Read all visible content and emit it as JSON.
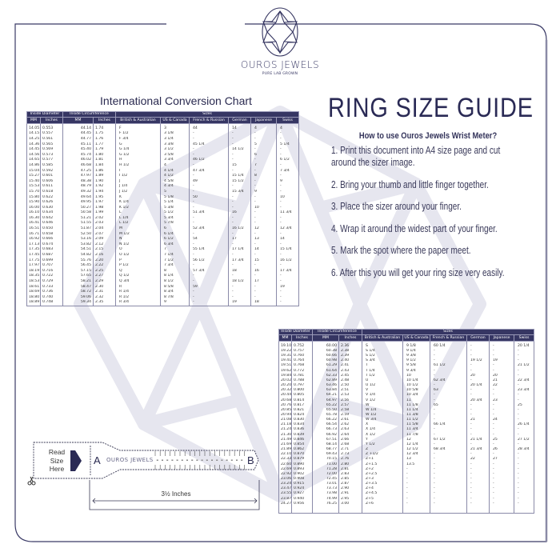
{
  "brand": {
    "name": "OUROS JEWELS",
    "tagline": "PURE LAB GROWN"
  },
  "colors": {
    "navy": "#363663",
    "watermark": "#e6e6ef",
    "frame": "#3a3a66"
  },
  "chart_title": "International Conversion Chart",
  "guide": {
    "title": "RING SIZE GUIDE",
    "howto": "How to use Ouros Jewels Wrist Meter?",
    "steps": [
      "1. Print this document into A4 size page and cut around the sizer image.",
      "2. Bring your thumb and little finger together.",
      "3. Place the sizer around your finger.",
      "4. Wrap it around the widest part of your finger.",
      "5. Mark the spot where the paper meet.",
      "6. After this you will get your ring size very easily."
    ]
  },
  "table_header": {
    "groups": [
      "Inside Diameter",
      "Inside Circumference",
      "Sizes"
    ],
    "columns": [
      "MM",
      "Inches",
      "MM",
      "Inches",
      "British & Australian",
      "US & Canada",
      "French & Russian",
      "German",
      "Japanese",
      "Swiss"
    ]
  },
  "table1_rows": [
    [
      "14.05",
      "0.553",
      "44.14",
      "1.74",
      "F",
      "3",
      "44",
      "14",
      "4",
      "4"
    ],
    [
      "14.15",
      "0.557",
      "44.45",
      "1.75",
      "F 1/2",
      "3 1/8",
      "-",
      "-",
      "-",
      "-"
    ],
    [
      "14.25",
      "0.561",
      "44.77",
      "1.76",
      "F 3/4",
      "3 1/4",
      "-",
      "-",
      "-",
      "-"
    ],
    [
      "14.36",
      "0.565",
      "45.11",
      "1.77",
      "G",
      "3 3/8",
      "45 1/4",
      "-",
      "5",
      "5 1/4"
    ],
    [
      "14.45",
      "0.569",
      "45.40",
      "1.79",
      "G 1/4",
      "3 1/2",
      "-",
      "14 1/2",
      "-",
      "-"
    ],
    [
      "14.56",
      "0.573",
      "45.74",
      "1.80",
      "G 1/2",
      "3 5/8",
      "-",
      "-",
      "6",
      "-"
    ],
    [
      "14.65",
      "0.577",
      "46.02",
      "1.81",
      "H",
      "3 3/4",
      "46 1/2",
      "-",
      "-",
      "6 1/2"
    ],
    [
      "14.86",
      "0.585",
      "46.68",
      "1.84",
      "H 1/2",
      "4",
      "-",
      "15",
      "7",
      "-"
    ],
    [
      "15.04",
      "0.592",
      "47.25",
      "1.86",
      "I",
      "4 1/4",
      "47 3/4",
      "-",
      "-",
      "7 3/4"
    ],
    [
      "15.27",
      "0.601",
      "47.97",
      "1.89",
      "I 1/2",
      "4 1/2",
      "-",
      "15 1/4",
      "8",
      "-"
    ],
    [
      "15.40",
      "0.606",
      "48.38",
      "1.90",
      "J",
      "4 5/8",
      "49",
      "15 1/2",
      "-",
      "9"
    ],
    [
      "15.53",
      "0.611",
      "48.79",
      "1.92",
      "J 1/4",
      "4 3/4",
      "-",
      "-",
      "-",
      "-"
    ],
    [
      "15.70",
      "0.618",
      "49.32",
      "1.94",
      "J 1/2",
      "5",
      "-",
      "15 3/4",
      "9",
      "-"
    ],
    [
      "15.80",
      "0.622",
      "49.64",
      "1.95",
      "K",
      "5 1/8",
      "50",
      "-",
      "-",
      "10"
    ],
    [
      "15.90",
      "0.626",
      "49.95",
      "1.97",
      "K 1/4",
      "5 1/4",
      "-",
      "-",
      "-",
      "-"
    ],
    [
      "16.00",
      "0.630",
      "50.27",
      "1.98",
      "K 1/2",
      "5 3/8",
      "-",
      "-",
      "10",
      "-"
    ],
    [
      "16.10",
      "0.634",
      "50.58",
      "1.99",
      "L",
      "5 1/2",
      "51 3/4",
      "16",
      "-",
      "11 3/4"
    ],
    [
      "16.30",
      "0.642",
      "51.21",
      "2.02",
      "L 1/4",
      "5 3/4",
      "-",
      "-",
      "-",
      "-"
    ],
    [
      "16.41",
      "0.646",
      "51.55",
      "2.03",
      "L 1/2",
      "5 7/8",
      "-",
      "-",
      "-",
      "-"
    ],
    [
      "16.51",
      "0.650",
      "51.87",
      "2.04",
      "M",
      "6",
      "52 3/4",
      "16 1/2",
      "12",
      "12 3/4"
    ],
    [
      "16.71",
      "0.658",
      "52.50",
      "2.07",
      "M 1/2",
      "6 1/4",
      "-",
      "-",
      "-",
      "-"
    ],
    [
      "16.92",
      "0.666",
      "53.16",
      "2.09",
      "N",
      "6 1/2",
      "54",
      "17",
      "13",
      "14"
    ],
    [
      "17.13",
      "0.674",
      "53.82",
      "2.12",
      "N 1/2",
      "6 3/4",
      "-",
      "-",
      "-",
      "-"
    ],
    [
      "17.35",
      "0.683",
      "54.51",
      "2.15",
      "O",
      "7",
      "55 1/4",
      "17 1/4",
      "14",
      "15 1/4"
    ],
    [
      "17.45",
      "0.687",
      "54.82",
      "2.16",
      "O 1/2",
      "7 1/4",
      "-",
      "-",
      "-",
      "-"
    ],
    [
      "17.75",
      "0.699",
      "55.76",
      "2.20",
      "P",
      "7 1/2",
      "56 1/2",
      "17 3/4",
      "15",
      "16 1/2"
    ],
    [
      "17.97",
      "0.707",
      "56.45",
      "2.22",
      "P 1/2",
      "7 3/4",
      "-",
      "-",
      "-",
      "-"
    ],
    [
      "18.19",
      "0.716",
      "57.15",
      "2.25",
      "Q",
      "8",
      "57 3/4",
      "18",
      "16",
      "17 3/4"
    ],
    [
      "18.35",
      "0.722",
      "57.65",
      "2.27",
      "Q 1/2",
      "8 1/4",
      "-",
      "-",
      "-",
      "-"
    ],
    [
      "18.53",
      "0.729",
      "58.21",
      "2.29",
      "Q 3/4",
      "8 1/2",
      "-",
      "18 1/2",
      "17",
      "-"
    ],
    [
      "18.61",
      "0.733",
      "58.47",
      "2.30",
      "R",
      "8 5/8",
      "59",
      "-",
      "-",
      "19"
    ],
    [
      "18.69",
      "0.736",
      "58.72",
      "2.31",
      "R 1/4",
      "8 3/4",
      "-",
      "-",
      "-",
      "-"
    ],
    [
      "18.80",
      "0.740",
      "59.06",
      "2.32",
      "R 1/2",
      "8 7/8",
      "-",
      "-",
      "-",
      "-"
    ],
    [
      "18.89",
      "0.748",
      "59.34",
      "2.35",
      "R 3/4",
      "9",
      "-",
      "19",
      "18",
      "-"
    ]
  ],
  "table2_rows": [
    [
      "19.10",
      "0.752",
      "60.00",
      "2.36",
      "S",
      "9 1/8",
      "60 1/4",
      "-",
      "-",
      "20 1/4"
    ],
    [
      "19.22",
      "0.757",
      "60.38",
      "2.38",
      "S 1/4",
      "9 1/4",
      "-",
      "-",
      "-",
      "-"
    ],
    [
      "19.31",
      "0.760",
      "60.66",
      "2.39",
      "S 1/2",
      "9 3/8",
      "-",
      "-",
      "-",
      "-"
    ],
    [
      "19.41",
      "0.764",
      "60.98",
      "2.40",
      "S 3/4",
      "9 1/2",
      "-",
      "19 1/2",
      "19",
      "-"
    ],
    [
      "19.51",
      "0.768",
      "61.29",
      "2.41",
      "T",
      "9 5/8",
      "61 1/2",
      "-",
      "-",
      "21 1/2"
    ],
    [
      "19.62",
      "0.772",
      "61.64",
      "2.43",
      "T 1/4",
      "9 3/4",
      "-",
      "-",
      "-",
      "-"
    ],
    [
      "19.84",
      "0.781",
      "62.33",
      "2.45",
      "T 1/2",
      "10",
      "-",
      "20",
      "20",
      "-"
    ],
    [
      "20.02",
      "0.788",
      "62.89",
      "2.48",
      "U",
      "10 1/4",
      "62 3/4",
      "-",
      "21",
      "22 3/4"
    ],
    [
      "20.20",
      "0.797",
      "63.46",
      "2.50",
      "U 1/2",
      "10 1/2",
      "-",
      "20 1/4",
      "22",
      "-"
    ],
    [
      "20.32",
      "0.800",
      "63.84",
      "2.51",
      "V",
      "10 5/8",
      "63",
      "-",
      "-",
      "23 3/4"
    ],
    [
      "20.44",
      "0.805",
      "64.21",
      "2.53",
      "V 1/4",
      "10 3/4",
      "-",
      "-",
      "-",
      "-"
    ],
    [
      "20.68",
      "0.814",
      "64.97",
      "2.56",
      "V 1/2",
      "11",
      "-",
      "20 3/4",
      "23",
      "-"
    ],
    [
      "20.76",
      "0.817",
      "65.22",
      "2.57",
      "W",
      "11 1/8",
      "65",
      "-",
      "-",
      "25"
    ],
    [
      "20.85",
      "0.821",
      "65.50",
      "2.58",
      "W 1/4",
      "11 1/4",
      "-",
      "-",
      "-",
      "-"
    ],
    [
      "20.94",
      "0.824",
      "65.78",
      "2.59",
      "W 1/2",
      "11 3/8",
      "-",
      "-",
      "-",
      "-"
    ],
    [
      "21.08",
      "0.830",
      "66.22",
      "2.61",
      "W 3/4",
      "11 1/2",
      "-",
      "21",
      "24",
      "-"
    ],
    [
      "21.18",
      "0.834",
      "66.54",
      "2.62",
      "X",
      "11 5/8",
      "66 1/4",
      "-",
      "-",
      "26 1/4"
    ],
    [
      "21.24",
      "0.836",
      "66.73",
      "2.63",
      "X 1/4",
      "11 3/4",
      "-",
      "-",
      "-",
      "-"
    ],
    [
      "21.30",
      "0.839",
      "66.92",
      "2.64",
      "X 1/2",
      "11 7/8",
      "-",
      "-",
      "-",
      "-"
    ],
    [
      "21.49",
      "0.846",
      "67.51",
      "2.66",
      "Y",
      "12",
      "67 1/2",
      "21 1/4",
      "25",
      "27 1/2"
    ],
    [
      "21.69",
      "0.854",
      "68.14",
      "2.68",
      "Y 1/2",
      "12 1/4",
      "-",
      "-",
      "-",
      "-"
    ],
    [
      "21.89",
      "0.862",
      "68.77",
      "2.71",
      "Z",
      "12 1/2",
      "68 3/4",
      "21 3/4",
      "26",
      "28 3/4"
    ],
    [
      "22.10",
      "0.870",
      "69.43",
      "2.73",
      "Z +1/2",
      "12 3/4",
      "-",
      "-",
      "-",
      "-"
    ],
    [
      "22.33",
      "0.879",
      "70.15",
      "2.76",
      "Z+1",
      "13",
      "-",
      "22",
      "27",
      "-"
    ],
    [
      "22.60",
      "0.890",
      "71.00",
      "2.80",
      "Z+1.5",
      "13.5",
      "-",
      "-",
      "-",
      "-"
    ],
    [
      "22.69",
      "0.893",
      "71.28",
      "2.81",
      "Z+2",
      "-",
      "-",
      "-",
      "-",
      "-"
    ],
    [
      "22.92",
      "0.902",
      "72.00",
      "2.83",
      "Z+2.5",
      "-",
      "-",
      "-",
      "-",
      "-"
    ],
    [
      "23.06",
      "0.908",
      "72.45",
      "2.85",
      "Z+3",
      "-",
      "-",
      "-",
      "-",
      "-"
    ],
    [
      "23.24",
      "0.915",
      "73.01",
      "2.87",
      "Z+3.5",
      "-",
      "-",
      "-",
      "-",
      "-"
    ],
    [
      "23.47",
      "0.924",
      "73.73",
      "2.90",
      "Z+4",
      "-",
      "-",
      "-",
      "-",
      "-"
    ],
    [
      "23.55",
      "0.927",
      "73.98",
      "2.91",
      "Z+4.5",
      "-",
      "-",
      "-",
      "-",
      "-"
    ],
    [
      "23.87",
      "0.940",
      "74.99",
      "2.95",
      "Z+5",
      "-",
      "-",
      "-",
      "-",
      "-"
    ],
    [
      "24.27",
      "0.956",
      "76.25",
      "3.00",
      "Z+6",
      "-",
      "-",
      "-",
      "-",
      "-"
    ]
  ],
  "sizer": {
    "read_label": "Read Size Here",
    "start_label": "A",
    "end_label": "B",
    "brand": "OUROS JEWELS",
    "length_label": "3½ Inches",
    "icons": [
      "arrow-right-icon",
      "scissors-icon"
    ]
  }
}
